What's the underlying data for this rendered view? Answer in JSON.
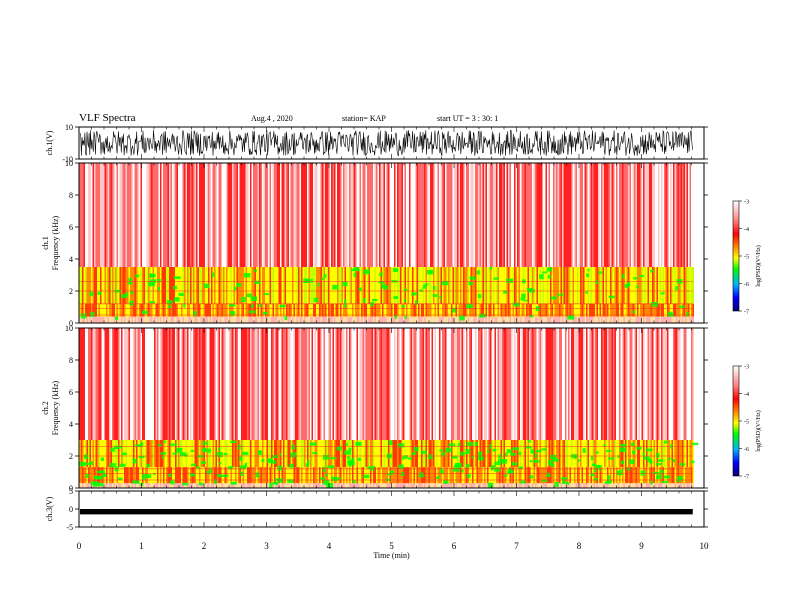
{
  "header": {
    "title": "VLF Spectra",
    "date": "Aug.4 , 2020",
    "station": "station= KAP",
    "start": "start UT =  3 : 30: 1"
  },
  "colors": {
    "colormap": [
      "#08006e",
      "#0000ff",
      "#00b4ff",
      "#00ff00",
      "#c8ff00",
      "#ffff00",
      "#ff8c00",
      "#ff0000",
      "#ff8080",
      "#ffffff"
    ],
    "waveform": "#000000"
  },
  "chart_data": [
    {
      "type": "line",
      "panel": "ch1-waveform",
      "ylabel": "ch.1(V)",
      "ylim": [
        -10,
        10
      ],
      "yticks": [
        "10",
        "-10"
      ],
      "xlim": [
        0,
        10
      ],
      "description_values": {
        "amplitude_range": [
          -8,
          8
        ]
      }
    },
    {
      "type": "heatmap",
      "panel": "ch1-spectrogram",
      "ylabel_channel": "ch.1",
      "ylabel": "Frequency (kHz)",
      "ylim": [
        0,
        10
      ],
      "yticks": [
        "0",
        "2",
        "4",
        "6",
        "8",
        "10"
      ],
      "xlim": [
        0,
        9.82
      ],
      "bands_khz": {
        "low_band": [
          0.4,
          1.2
        ],
        "mid_band": [
          1.2,
          3.5
        ],
        "upper": [
          3.5,
          10
        ]
      },
      "colorbar": {
        "label": "log(PSD)(V²/Hz)",
        "range": [
          -7,
          -3
        ],
        "ticks": [
          "-3",
          "-4",
          "-5",
          "-6",
          "-7"
        ]
      }
    },
    {
      "type": "heatmap",
      "panel": "ch2-spectrogram",
      "ylabel_channel": "ch.2",
      "ylabel": "Frequency (kHz)",
      "ylim": [
        0,
        10
      ],
      "yticks": [
        "0",
        "2",
        "4",
        "6",
        "8",
        "10"
      ],
      "xlim": [
        0,
        9.82
      ],
      "bands_khz": {
        "low_band": [
          0.3,
          1.3
        ],
        "mid_band": [
          1.3,
          3.0
        ],
        "upper": [
          3.0,
          10
        ]
      },
      "colorbar": {
        "label": "log(PSD)(V²/Hz)",
        "range": [
          -7,
          -3
        ],
        "ticks": [
          "-3",
          "-4",
          "-5",
          "-6",
          "-7"
        ]
      }
    },
    {
      "type": "line",
      "panel": "ch3-waveform",
      "ylabel": "ch.3(V)",
      "ylim": [
        -5,
        5
      ],
      "yticks": [
        "5",
        "0",
        "-5"
      ],
      "xlim": [
        0,
        10
      ],
      "description_values": {
        "amplitude_range": [
          -1.5,
          0
        ]
      }
    }
  ],
  "x_axis": {
    "label": "Time (min)",
    "ticks": [
      "0",
      "1",
      "2",
      "3",
      "4",
      "5",
      "6",
      "7",
      "8",
      "9",
      "10"
    ]
  }
}
